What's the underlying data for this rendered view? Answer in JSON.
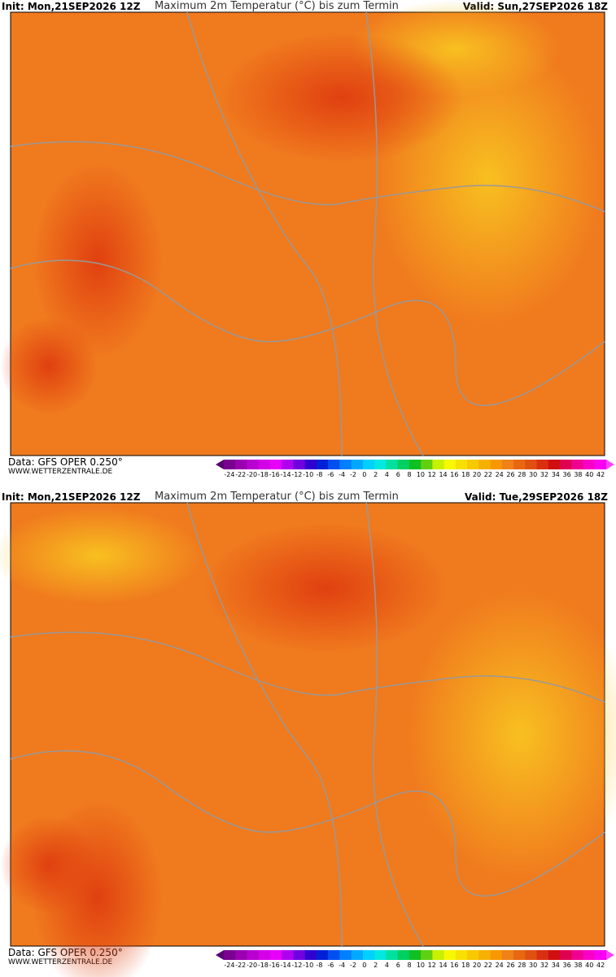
{
  "maps": [
    {
      "init": "Init: Mon,21SEP2026 12Z",
      "title": "Maximum 2m Temperatur (°C) bis zum Termin",
      "valid": "Valid: Sun,27SEP2026 18Z",
      "data_source": "Data: GFS OPER 0.250°",
      "website": "WWW.WETTERZENTRALE.DE",
      "colorbar": {
        "labels": [
          -24,
          -22,
          -20,
          -18,
          -16,
          -14,
          -12,
          -10,
          -8,
          -6,
          -4,
          -2,
          0,
          2,
          4,
          6,
          8,
          10,
          12,
          14,
          16,
          18,
          20,
          22,
          24,
          26,
          28,
          30,
          32,
          34,
          36,
          38,
          40,
          42
        ]
      }
    },
    {
      "init": "Init: Mon,21SEP2026 12Z",
      "title": "Maximum 2m Temperatur (°C) bis zum Termin",
      "valid": "Valid: Tue,29SEP2026 18Z",
      "data_source": "Data: GFS OPER 0.250°",
      "website": "WWW.WETTERZENTRALE.DE",
      "colorbar": {
        "labels": [
          -24,
          -22,
          -20,
          -18,
          -16,
          -14,
          -12,
          -10,
          -8,
          -6,
          -4,
          -2,
          0,
          2,
          4,
          6,
          8,
          10,
          12,
          14,
          16,
          18,
          20,
          22,
          24,
          26,
          28,
          30,
          32,
          34,
          36,
          38,
          40,
          42
        ]
      }
    }
  ],
  "colorbar_colors": [
    "#5a0070",
    "#7a0090",
    "#9a00b0",
    "#b800d0",
    "#d400e8",
    "#e800f8",
    "#b000f0",
    "#7000e0",
    "#3000d0",
    "#0020d8",
    "#0050f0",
    "#0080ff",
    "#00a8ff",
    "#00d0ff",
    "#00e8e0",
    "#00e0a0",
    "#00d060",
    "#10c020",
    "#60d010",
    "#c8f000",
    "#f8f800",
    "#f8e000",
    "#f8c800",
    "#f8b000",
    "#f89800",
    "#f08018",
    "#e86810",
    "#e05010",
    "#d83010",
    "#d01010",
    "#e00050",
    "#f00090",
    "#f800c8",
    "#f800f0",
    "#ff40ff"
  ]
}
